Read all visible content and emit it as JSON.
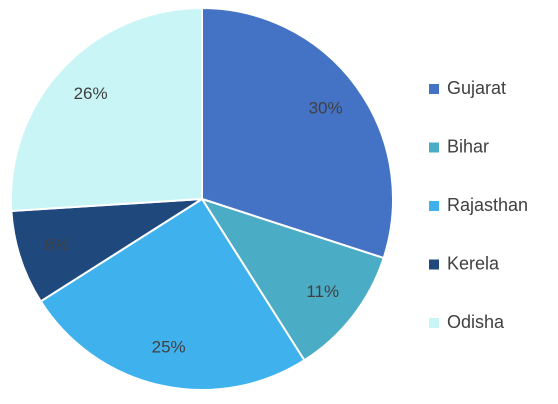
{
  "chart_data": {
    "type": "pie",
    "categories": [
      "Gujarat",
      "Bihar",
      "Rajasthan",
      "Kerela",
      "Odisha"
    ],
    "values": [
      30,
      11,
      25,
      8,
      26
    ],
    "value_labels": [
      "30%",
      "11%",
      "25%",
      "8%",
      "26%"
    ],
    "colors": [
      "#4472c4",
      "#4bacc6",
      "#3fb2ee",
      "#1f497d",
      "#c9f5f7"
    ],
    "legend": "right"
  }
}
